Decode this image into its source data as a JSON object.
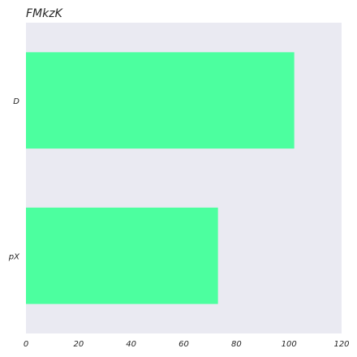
{
  "chart_data": {
    "type": "bar",
    "orientation": "horizontal",
    "title": "FMkzK",
    "xlabel": "",
    "ylabel": "",
    "categories": [
      "D",
      "pX"
    ],
    "values": [
      102,
      73
    ],
    "xlim": [
      0,
      120
    ],
    "xticks": [
      0,
      20,
      40,
      60,
      80,
      100,
      120
    ],
    "grid": false,
    "legend": "none",
    "colors": {
      "bar": "#4cff9f",
      "plot_background": "#eaeaf2",
      "text": "#262626"
    }
  }
}
